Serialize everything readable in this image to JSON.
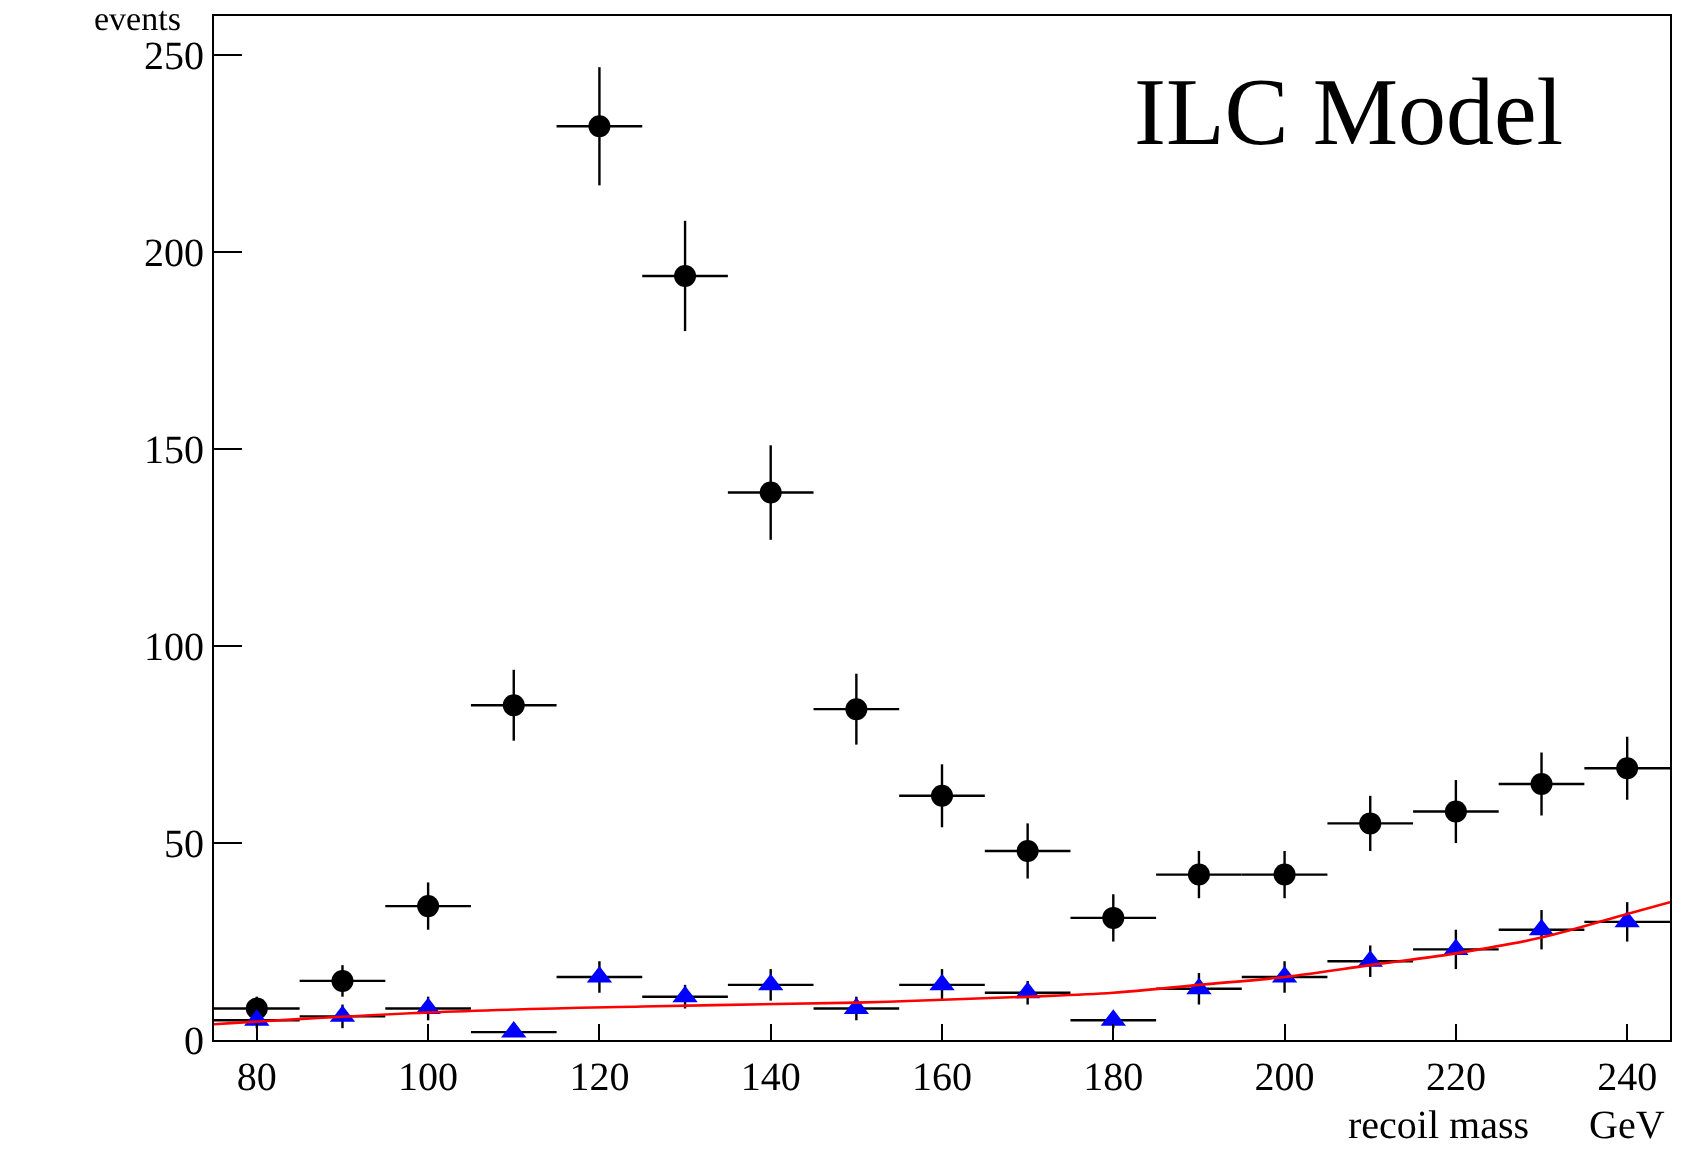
{
  "chart_data": {
    "type": "scatter",
    "title": "ILC Model",
    "xlabel": "recoil mass      GeV",
    "ylabel": "events",
    "x": [
      80,
      90,
      100,
      110,
      120,
      130,
      140,
      150,
      160,
      170,
      180,
      190,
      200,
      210,
      220,
      230,
      240
    ],
    "series": [
      {
        "color": "#000000",
        "marker": "circle",
        "values": [
          8,
          15,
          34,
          85,
          232,
          194,
          139,
          84,
          62,
          48,
          31,
          42,
          42,
          55,
          58,
          65,
          69
        ],
        "errors": [
          3,
          4,
          6,
          9,
          15,
          14,
          12,
          9,
          8,
          7,
          6,
          6,
          6,
          7,
          8,
          8,
          8
        ],
        "xerrors": [
          5,
          5,
          5,
          5,
          5,
          5,
          5,
          5,
          5,
          5,
          5,
          5,
          5,
          5,
          5,
          5,
          5
        ]
      },
      {
        "color": "#0000ff",
        "marker": "triangle",
        "values": [
          5,
          6,
          8,
          2,
          16,
          11,
          14,
          8,
          14,
          12,
          5,
          13,
          16,
          20,
          23,
          28,
          30
        ],
        "errors": [
          2,
          3,
          3,
          1,
          4,
          3,
          4,
          3,
          4,
          3,
          2,
          4,
          4,
          4,
          5,
          5,
          5
        ],
        "xerrors": [
          5,
          5,
          5,
          5,
          5,
          5,
          5,
          5,
          5,
          5,
          5,
          5,
          5,
          5,
          5,
          5,
          5
        ]
      },
      {
        "type": "line",
        "color": "#ff0000",
        "line_style": "solid",
        "x": [
          75,
          100,
          125,
          150,
          170,
          180,
          190,
          200,
          210,
          220,
          230,
          240,
          245
        ],
        "values": [
          4,
          7,
          8.5,
          9.5,
          11,
          12,
          14,
          16,
          19,
          22,
          26,
          32,
          35
        ]
      }
    ],
    "xlim": [
      75,
      245
    ],
    "xticks": [
      80,
      100,
      120,
      140,
      160,
      180,
      200,
      220,
      240
    ],
    "ylim": [
      0,
      260
    ],
    "yticks": [
      0,
      50,
      100,
      150,
      200,
      250
    ],
    "grid": false
  }
}
